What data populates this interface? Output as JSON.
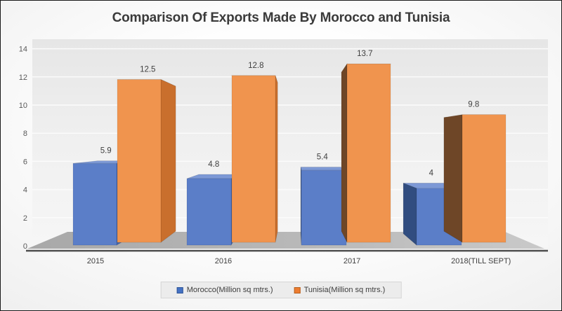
{
  "chart_data": {
    "type": "bar",
    "style": "3d-clustered-column",
    "title": "Comparison Of Exports Made By Morocco and Tunisia",
    "categories": [
      "2015",
      "2016",
      "2017",
      "2018(TILL SEPT)"
    ],
    "series": [
      {
        "name": "Morocco(Million sq mtrs.)",
        "values": [
          5.9,
          4.8,
          5.4,
          4.1
        ],
        "labels": [
          "5.9",
          "4.8",
          "5.4",
          "4"
        ],
        "colors": {
          "front": "#5b7ec8",
          "top": "#7d99d6",
          "side_light": "#4466ab",
          "side_dark": "#314d80"
        },
        "swatch": "#4472c4",
        "swatch_border": "#2f5597"
      },
      {
        "name": "Tunisia(Million sq mtrs.)",
        "values": [
          12.5,
          12.8,
          13.7,
          9.8
        ],
        "labels": [
          "12.5",
          "12.8",
          "13.7",
          "9.8"
        ],
        "colors": {
          "front": "#f0944e",
          "top": "#ea8c3f",
          "side_light": "#c96f2d",
          "side_dark": "#6e4627"
        },
        "swatch": "#ed7d31",
        "swatch_border": "#b55f1d"
      }
    ],
    "ylim": [
      0,
      14
    ],
    "yticks": [
      "0",
      "2",
      "4",
      "6",
      "8",
      "10",
      "12",
      "14"
    ],
    "xlabel": "",
    "ylabel": "",
    "grid": "horizontal",
    "legend_position": "bottom",
    "note": "Morocco 2018 data label is partially hidden behind the Tunisia bar; only the digit 4 is visible"
  },
  "colors": {
    "title_text": "#3a3a3a",
    "axis_line": "#4d4d4d",
    "tick_text": "#595959",
    "value_label_text": "#3f3f3f",
    "legend_background": "#ececec",
    "wall_light": "#f6f6f6",
    "wall_dark": "#e6e6e6",
    "floor_gray": "#b3b3b3"
  }
}
